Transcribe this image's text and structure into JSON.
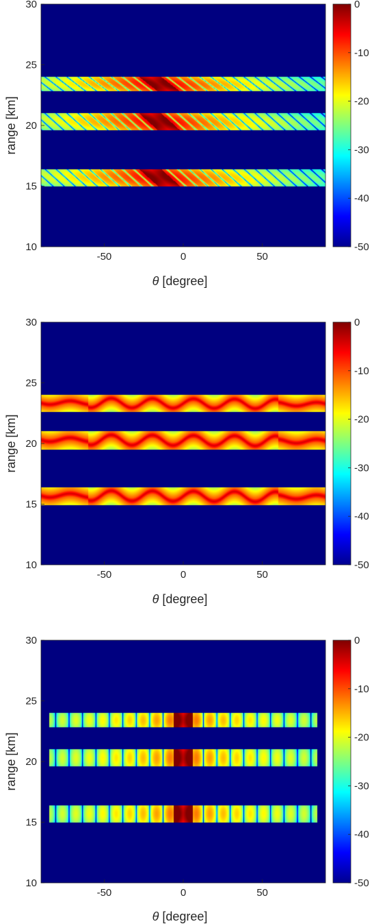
{
  "chart_data": [
    {
      "type": "heatmap",
      "id": "panel-1",
      "xlabel_symbol": "θ",
      "xlabel_text": " [degree]",
      "ylabel": "range [km]",
      "xlim": [
        -90,
        90
      ],
      "ylim": [
        10,
        30
      ],
      "xticks": [
        -50,
        0,
        50
      ],
      "yticks": [
        10,
        15,
        20,
        25,
        30
      ],
      "colorbar": {
        "clim": [
          -50,
          0
        ],
        "ticks": [
          0,
          -10,
          -20,
          -30,
          -40,
          -50
        ],
        "colormap": "jet"
      },
      "background_value": -50,
      "pattern": "steered_diagonal",
      "peak_theta": -15,
      "bands": [
        {
          "range": [
            22.8,
            24.0
          ],
          "peak_range": 23.4
        },
        {
          "range": [
            19.6,
            21.0
          ],
          "peak_range": 20.3
        },
        {
          "range": [
            15.0,
            16.4
          ],
          "peak_range": 15.7
        }
      ]
    },
    {
      "type": "heatmap",
      "id": "panel-2",
      "xlabel_symbol": "θ",
      "xlabel_text": " [degree]",
      "ylabel": "range [km]",
      "xlim": [
        -90,
        90
      ],
      "ylim": [
        10,
        30
      ],
      "xticks": [
        -50,
        0,
        50
      ],
      "yticks": [
        10,
        15,
        20,
        25,
        30
      ],
      "colorbar": {
        "clim": [
          -50,
          0
        ],
        "ticks": [
          0,
          -10,
          -20,
          -30,
          -40,
          -50
        ],
        "colormap": "jet"
      },
      "background_value": -50,
      "pattern": "wavy_ridge",
      "bands": [
        {
          "range": [
            22.6,
            24.0
          ],
          "peak_range": 23.3
        },
        {
          "range": [
            19.5,
            21.0
          ],
          "peak_range": 20.3
        },
        {
          "range": [
            14.9,
            16.4
          ],
          "peak_range": 15.7
        }
      ]
    },
    {
      "type": "heatmap",
      "id": "panel-3",
      "xlabel_symbol": "θ",
      "xlabel_text": " [degree]",
      "ylabel": "range [km]",
      "xlim": [
        -90,
        90
      ],
      "ylim": [
        10,
        30
      ],
      "xticks": [
        -50,
        0,
        50
      ],
      "yticks": [
        10,
        15,
        20,
        25,
        30
      ],
      "colorbar": {
        "clim": [
          -50,
          0
        ],
        "ticks": [
          0,
          -10,
          -20,
          -30,
          -40,
          -50
        ],
        "colormap": "jet"
      },
      "background_value": -50,
      "pattern": "vertical_sidelobes",
      "peak_theta": 0,
      "theta_extent": [
        -85,
        85
      ],
      "bands": [
        {
          "range": [
            22.8,
            24.0
          ]
        },
        {
          "range": [
            19.6,
            21.0
          ]
        },
        {
          "range": [
            15.0,
            16.4
          ]
        }
      ]
    }
  ]
}
